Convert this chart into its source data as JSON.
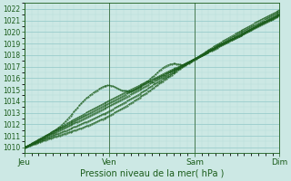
{
  "xlabel": "Pression niveau de la mer( hPa )",
  "ylim": [
    1009.5,
    1022.5
  ],
  "xlim": [
    0,
    288
  ],
  "yticks": [
    1010,
    1011,
    1012,
    1013,
    1014,
    1015,
    1016,
    1017,
    1018,
    1019,
    1020,
    1021,
    1022
  ],
  "xtick_positions": [
    0,
    96,
    192,
    288
  ],
  "xtick_labels": [
    "Jeu",
    "Ven",
    "Sam",
    "Dim"
  ],
  "bg_color": "#cce8e4",
  "grid_major_color": "#99cccc",
  "grid_minor_color": "#b8ddd8",
  "line_color": "#1a5c1a",
  "vline_color": "#336633",
  "n_points": 289,
  "figsize": [
    3.2,
    2.0
  ],
  "dpi": 100
}
